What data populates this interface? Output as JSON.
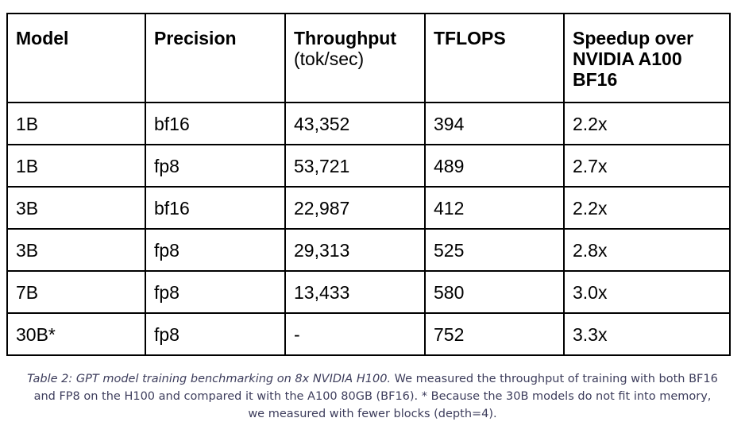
{
  "table": {
    "headers": [
      {
        "main": "Model",
        "sub": ""
      },
      {
        "main": "Precision",
        "sub": ""
      },
      {
        "main": "Throughput",
        "sub": "(tok/sec)"
      },
      {
        "main": "TFLOPS",
        "sub": ""
      },
      {
        "main": "Speedup over NVIDIA A100 BF16",
        "sub": ""
      }
    ],
    "rows": [
      [
        "1B",
        "bf16",
        "43,352",
        "394",
        "2.2x"
      ],
      [
        "1B",
        "fp8",
        "53,721",
        "489",
        "2.7x"
      ],
      [
        "3B",
        "bf16",
        "22,987",
        "412",
        "2.2x"
      ],
      [
        "3B",
        "fp8",
        "29,313",
        "525",
        "2.8x"
      ],
      [
        "7B",
        "fp8",
        "13,433",
        "580",
        "3.0x"
      ],
      [
        "30B*",
        "fp8",
        "-",
        "752",
        "3.3x"
      ]
    ]
  },
  "caption": {
    "italic": "Table 2: GPT model training benchmarking on 8x NVIDIA H100.",
    "line1_rest": " We measured the throughput of training with both BF16",
    "line2": "and FP8 on the H100 and compared it with the A100 80GB (BF16). * Because the 30B models do not fit into memory,",
    "line3": "we measured with fewer blocks (depth=4)."
  },
  "colors": {
    "border": "#000000",
    "caption_text": "#3d3d5c"
  }
}
